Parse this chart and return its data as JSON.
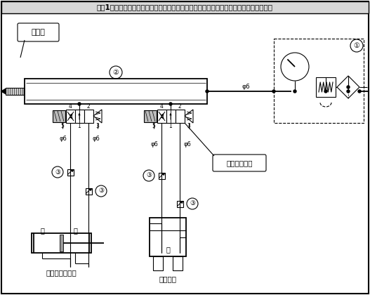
{
  "title": "【図1】空気圧駆動システムの設計図（ビンゴゲーム機のカラーボールクランプ機構部）",
  "bg_color": "#ffffff",
  "text_color": "#000000",
  "label_silencer": "消音器",
  "label_single_cylinder": "単動シリンダ",
  "label_chuck_ud": "チャック上下軸",
  "label_chuck": "チャック",
  "label_up": "上",
  "label_down": "下",
  "label_open": "開",
  "label_phi6": "φ6",
  "num1": "①",
  "num2": "②",
  "num3": "③",
  "port4": "4",
  "port2": "2",
  "port5": "5",
  "port1": "1",
  "port3": "3",
  "fig_width": 5.27,
  "fig_height": 4.2,
  "dpi": 100
}
